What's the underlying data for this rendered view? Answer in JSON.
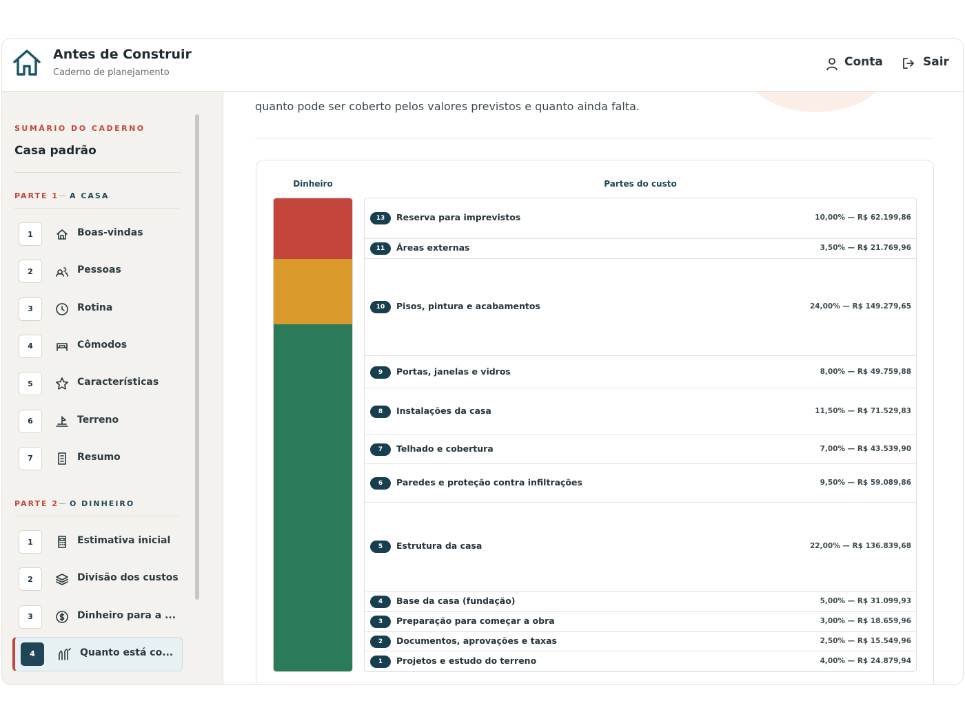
{
  "header": {
    "title": "Antes de Construir",
    "subtitle": "Caderno de planejamento",
    "account": "Conta",
    "logout": "Sair"
  },
  "sidebar": {
    "label": "SUMÁRIO DO CADERNO",
    "name": "Casa padrão",
    "sections": [
      {
        "part": "PARTE 1",
        "name": "A CASA",
        "items": [
          {
            "number": "1",
            "label": "Boas-vindas"
          },
          {
            "number": "2",
            "label": "Pessoas"
          },
          {
            "number": "3",
            "label": "Rotina"
          },
          {
            "number": "4",
            "label": "Cômodos"
          },
          {
            "number": "5",
            "label": "Características"
          },
          {
            "number": "6",
            "label": "Terreno"
          },
          {
            "number": "7",
            "label": "Resumo"
          }
        ]
      },
      {
        "part": "PARTE 2",
        "name": "O DINHEIRO",
        "items": [
          {
            "number": "1",
            "label": "Estimativa inicial"
          },
          {
            "number": "2",
            "label": "Divisão dos custos"
          },
          {
            "number": "3",
            "label": "Dinheiro para a ..."
          },
          {
            "number": "4",
            "label": "Quanto está co...",
            "active": true
          }
        ]
      }
    ]
  },
  "main": {
    "intro": "quanto pode ser coberto pelos valores previstos e quanto ainda falta.",
    "money_heading": "Dinheiro",
    "parts_heading": "Partes do custo",
    "money_segments": [
      {
        "color": "#c4453c",
        "share": 12.8
      },
      {
        "color": "#d99a2b",
        "share": 13.8
      },
      {
        "color": "#2b7a5a",
        "share": 73.4
      }
    ],
    "parts": [
      {
        "number": "13",
        "name": "Reserva para imprevistos",
        "share": 10,
        "detail": "10,00% — R$ 62.199,86"
      },
      {
        "number": "11",
        "name": "Áreas externas",
        "share": 3.5,
        "detail": "3,50% — R$ 21.769,96"
      },
      {
        "number": "10",
        "name": "Pisos, pintura e acabamentos",
        "share": 24,
        "detail": "24,00% — R$ 149.279,65"
      },
      {
        "number": "9",
        "name": "Portas, janelas e vidros",
        "share": 8,
        "detail": "8,00% — R$ 49.759,88"
      },
      {
        "number": "8",
        "name": "Instalações da casa",
        "share": 11.5,
        "detail": "11,50% — R$ 71.529,83"
      },
      {
        "number": "7",
        "name": "Telhado e cobertura",
        "share": 7,
        "detail": "7,00% — R$ 43.539,90"
      },
      {
        "number": "6",
        "name": "Paredes e proteção contra infiltrações",
        "share": 9.5,
        "detail": "9,50% — R$ 59.089,86"
      },
      {
        "number": "5",
        "name": "Estrutura da casa",
        "share": 22,
        "detail": "22,00% — R$ 136.839,68"
      },
      {
        "number": "4",
        "name": "Base da casa (fundação)",
        "share": 5,
        "detail": "5,00% — R$ 31.099,93"
      },
      {
        "number": "3",
        "name": "Preparação para começar a obra",
        "share": 3,
        "detail": "3,00% — R$ 18.659,96"
      },
      {
        "number": "2",
        "name": "Documentos, aprovações e taxas",
        "share": 2.5,
        "detail": "2,50% — R$ 15.549,96"
      },
      {
        "number": "1",
        "name": "Projetos e estudo do terreno",
        "share": 4,
        "detail": "4,00% — R$ 24.879,94"
      }
    ]
  }
}
